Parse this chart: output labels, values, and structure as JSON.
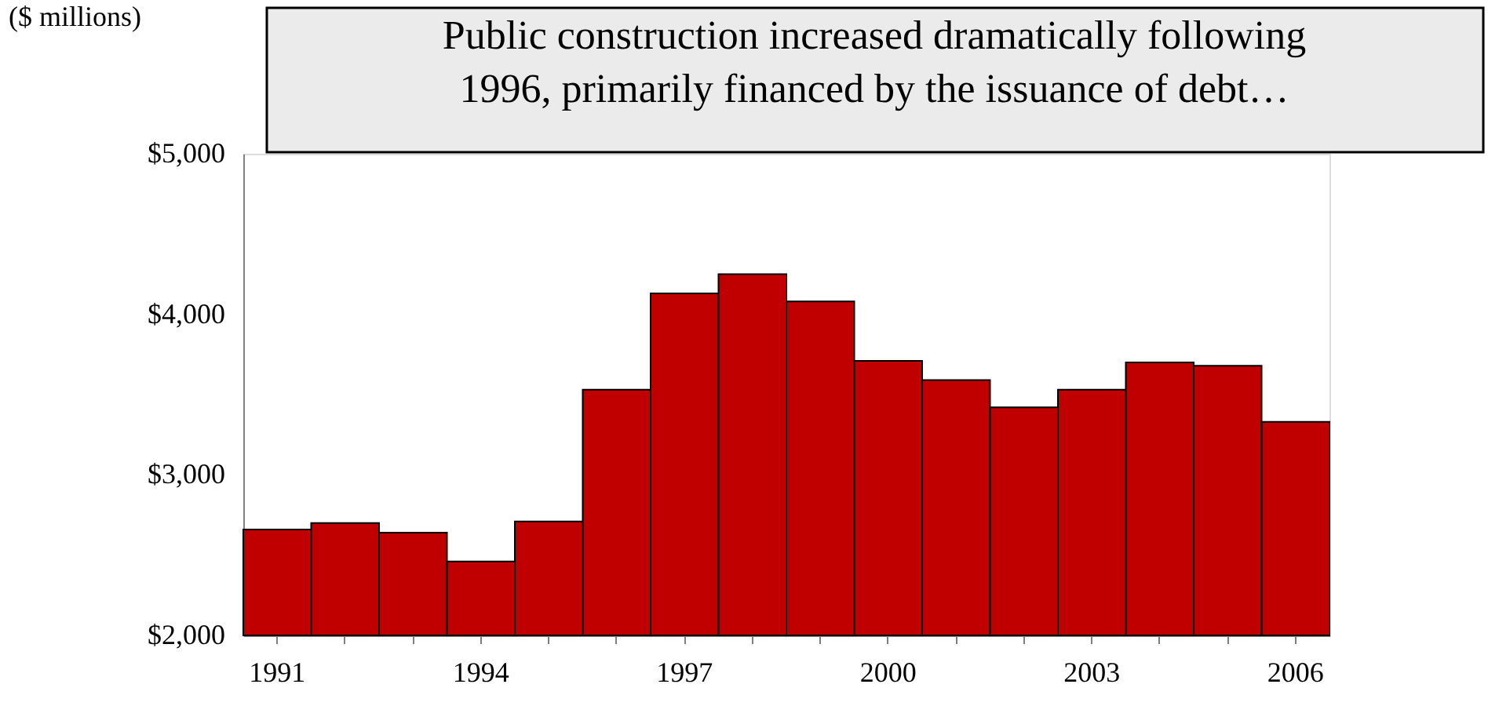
{
  "chart_data": {
    "type": "bar",
    "title": "Public construction increased dramatically following 1996, primarily financed by the issuance of debt…",
    "ylabel": "($ millions)",
    "categories": [
      "1991",
      null,
      null,
      "1994",
      null,
      null,
      "1997",
      null,
      null,
      "2000",
      null,
      null,
      "2003",
      null,
      null,
      "2006"
    ],
    "values": [
      2660,
      2700,
      2640,
      2460,
      2710,
      3530,
      4130,
      4250,
      4080,
      3710,
      3590,
      3420,
      3530,
      3700,
      3680,
      3330
    ],
    "color": "#c00000",
    "ylim": [
      2000,
      5000
    ],
    "yticks": [
      {
        "value": 2000,
        "label": "$2,000"
      },
      {
        "value": 3000,
        "label": "$3,000"
      },
      {
        "value": 4000,
        "label": "$4,000"
      },
      {
        "value": 5000,
        "label": "$5,000"
      }
    ],
    "grid": false
  }
}
